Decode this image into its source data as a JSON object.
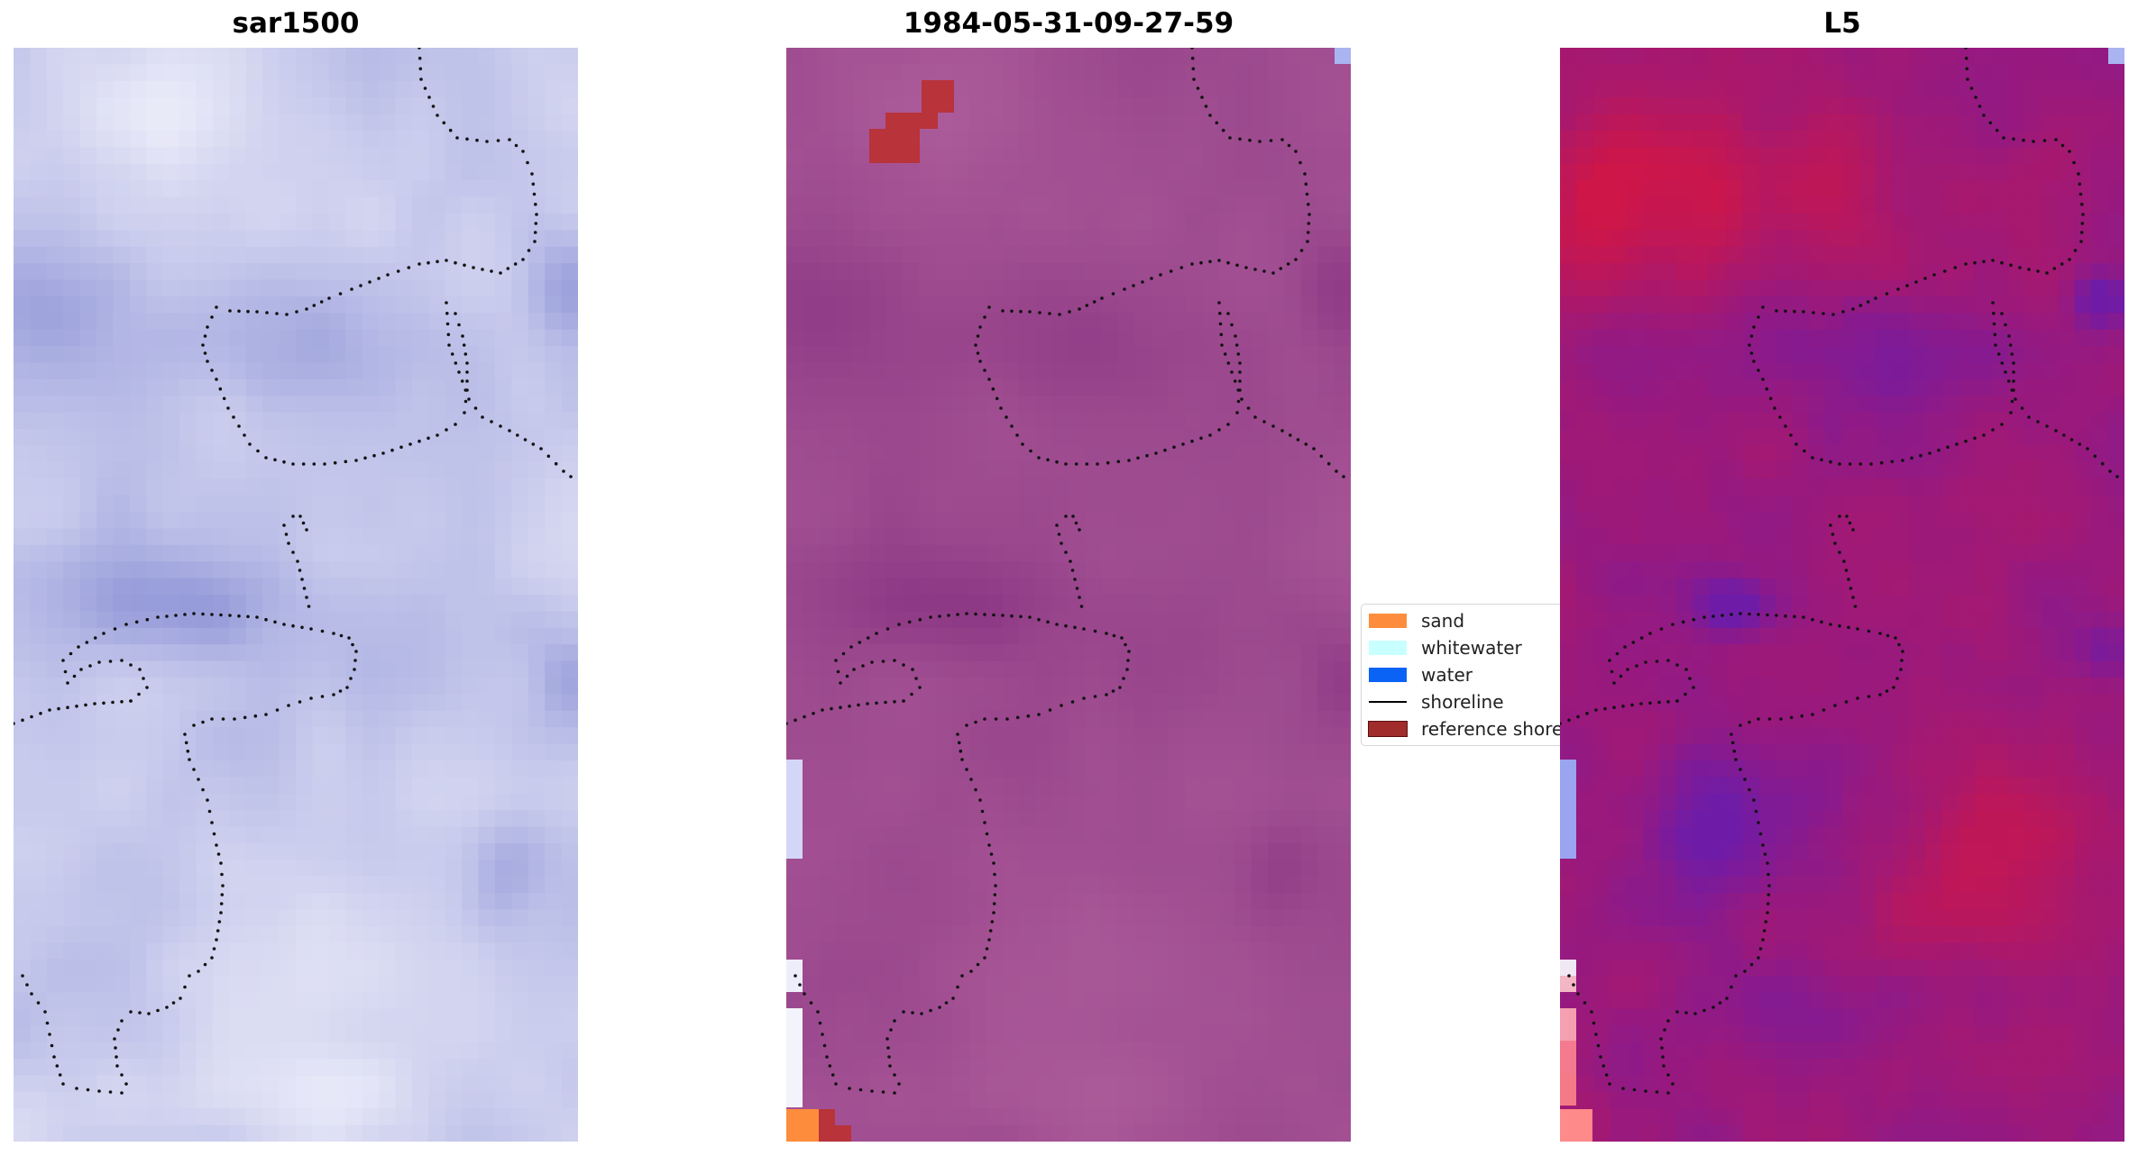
{
  "panels": [
    {
      "title": "sar1500",
      "mode": "sar"
    },
    {
      "title": "1984-05-31-09-27-59",
      "mode": "class"
    },
    {
      "title": "L5",
      "mode": "l5"
    }
  ],
  "legend": {
    "items": [
      {
        "label": "sand",
        "color": "#fd8d3c",
        "kind": "patch"
      },
      {
        "label": "whitewater",
        "color": "#c8ffff",
        "kind": "patch"
      },
      {
        "label": "water",
        "color": "#0b63f6",
        "kind": "patch"
      },
      {
        "label": "shoreline",
        "color": "#000000",
        "kind": "line"
      },
      {
        "label": "reference shoreline",
        "color": "#a02c2c",
        "kind": "patch"
      }
    ]
  },
  "colors": {
    "sar_light": "#f6f6fd",
    "sar_dark": "#8890cc",
    "overlay_purple": "#a24f9a",
    "reference_shoreline": "#a02c2c",
    "sand": "#fd8d3c",
    "l5_red": "#c8144a",
    "l5_violet": "#6a1aa8"
  }
}
